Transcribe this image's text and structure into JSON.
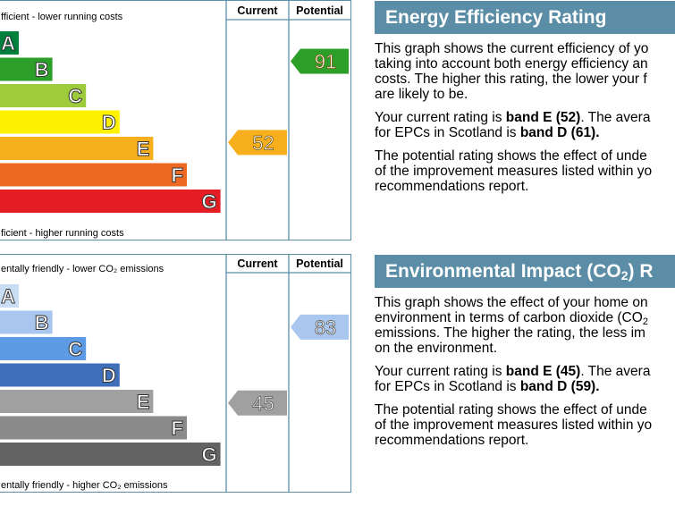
{
  "chart_data": [
    {
      "type": "bar",
      "name": "energy-efficiency-rating",
      "categories": [
        "A",
        "B",
        "C",
        "D",
        "E",
        "F",
        "G"
      ],
      "column_headers": [
        "Current",
        "Potential"
      ],
      "top_label": "fficient - lower running costs",
      "bottom_label": "ficient - higher running costs",
      "colors": [
        "#007f3d",
        "#2c9f29",
        "#9dcb3c",
        "#fff200",
        "#f7af1d",
        "#ed6823",
        "#e31d23"
      ],
      "current": {
        "value": 52,
        "band": "E",
        "color": "#f7af1d"
      },
      "potential": {
        "value": 91,
        "band": "B",
        "color": "#2c9f29"
      }
    },
    {
      "type": "bar",
      "name": "environmental-impact-rating",
      "categories": [
        "A",
        "B",
        "C",
        "D",
        "E",
        "F",
        "G"
      ],
      "column_headers": [
        "Current",
        "Potential"
      ],
      "top_label": "entally friendly - lower CO₂ emissions",
      "bottom_label": "entally friendly - higher CO₂ emissions",
      "colors": [
        "#c8ddf4",
        "#a8c6ee",
        "#5d9be5",
        "#3f6fb8",
        "#a0a0a0",
        "#8a8a8a",
        "#636363"
      ],
      "current": {
        "value": 45,
        "band": "E",
        "color": "#a0a0a0"
      },
      "potential": {
        "value": 83,
        "band": "B",
        "color": "#a8c6ee"
      }
    }
  ],
  "energy_panel": {
    "title": "Energy Efficiency Rating",
    "p1": "This graph shows the current efficiency of yo taking into account both energy efficiency an costs. The higher this rating, the lower your f are likely to be.",
    "p1_lines": [
      "This graph shows the current efficiency of yo",
      "taking into account both energy efficiency an",
      "costs. The higher this rating, the lower your f",
      "are likely to be."
    ],
    "p2_lines": [
      [
        "Your current rating is ",
        "band E (52)",
        ". The avera"
      ],
      [
        "for EPCs in Scotland is ",
        "band D (61).",
        ""
      ]
    ],
    "p3_lines": [
      "The potential rating shows the effect of unde",
      "of the improvement measures listed within yo",
      "recommendations report."
    ]
  },
  "environment_panel": {
    "title_pre": "Environmental Impact (CO",
    "title_sub": "2",
    "title_post": ") R",
    "p1_line1": "This graph shows the effect of your home on",
    "p1_line2_pre": "environment in terms of carbon dioxide (CO",
    "p1_line2_sub": "2",
    "p1_line3": "emissions. The higher the rating, the less im",
    "p1_line4": "on the environment.",
    "p2_lines": [
      [
        "Your current rating is ",
        "band E (45)",
        ". The avera"
      ],
      [
        "for EPCs in Scotland is ",
        "band D (59).",
        ""
      ]
    ],
    "p3_lines": [
      "The potential rating shows the effect of unde",
      "of the improvement measures listed within yo",
      "recommendations report."
    ]
  }
}
